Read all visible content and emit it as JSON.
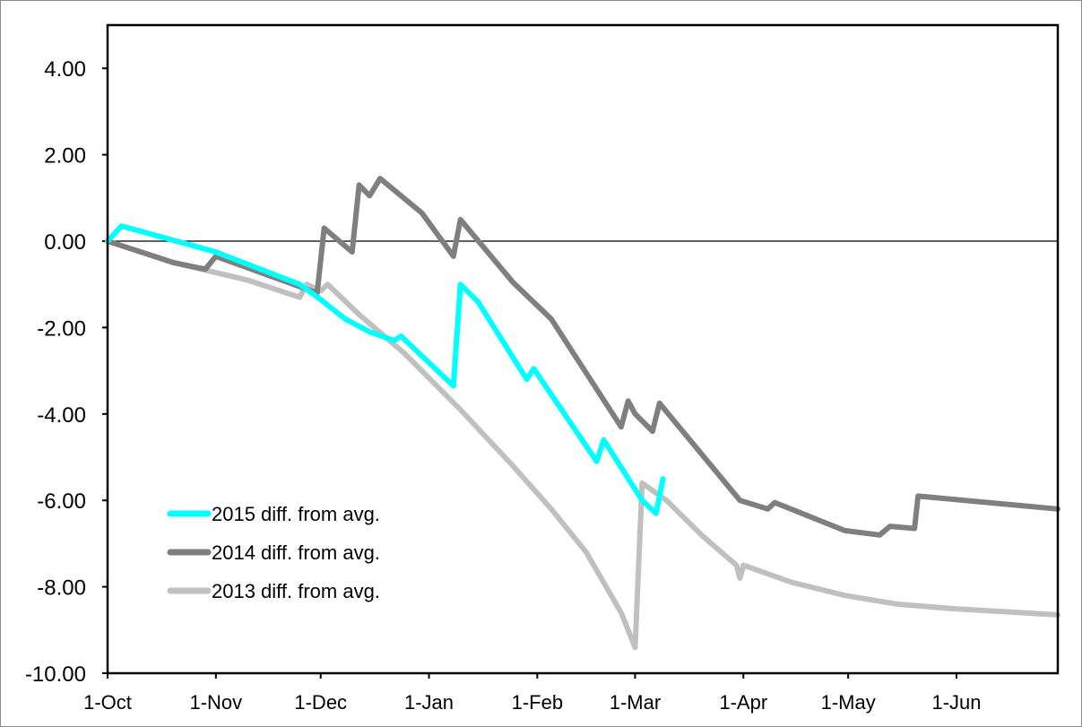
{
  "chart_data": {
    "type": "line",
    "title": "",
    "xlabel": "",
    "ylabel": "",
    "x_tick_labels": [
      "1-Oct",
      "1-Nov",
      "1-Dec",
      "1-Jan",
      "1-Feb",
      "1-Mar",
      "1-Apr",
      "1-May",
      "1-Jun"
    ],
    "xlim": [
      "1-Oct",
      "30-Jun"
    ],
    "ylim": [
      -10,
      5
    ],
    "y_tick_labels": [
      "4.00",
      "2.00",
      "0.00",
      "-2.00",
      "-4.00",
      "-6.00",
      "-8.00",
      "-10.00"
    ],
    "y_tick_values": [
      4,
      2,
      0,
      -2,
      -4,
      -6,
      -8,
      -10
    ],
    "zero_line": true,
    "grid": false,
    "legend_position": "bottom-left",
    "series": [
      {
        "name": "2013 diff. from avg.",
        "color": "#c0c0c0",
        "points": [
          [
            "1-Oct",
            0
          ],
          [
            "20-Oct",
            -0.5
          ],
          [
            "10-Nov",
            -0.9
          ],
          [
            "25-Nov",
            -1.3
          ],
          [
            "27-Nov",
            -1.0
          ],
          [
            "1-Dec",
            -1.15
          ],
          [
            "3-Dec",
            -1.0
          ],
          [
            "12-Dec",
            -1.7
          ],
          [
            "25-Dec",
            -2.6
          ],
          [
            "10-Jan",
            -3.9
          ],
          [
            "25-Jan",
            -5.2
          ],
          [
            "5-Feb",
            -6.2
          ],
          [
            "15-Feb",
            -7.2
          ],
          [
            "25-Feb",
            -8.6
          ],
          [
            "1-Mar",
            -9.4
          ],
          [
            "3-Mar",
            -5.6
          ],
          [
            "10-Mar",
            -6.0
          ],
          [
            "20-Mar",
            -6.8
          ],
          [
            "30-Mar",
            -7.5
          ],
          [
            "31-Mar",
            -7.8
          ],
          [
            "1-Apr",
            -7.5
          ],
          [
            "15-Apr",
            -7.9
          ],
          [
            "30-Apr",
            -8.2
          ],
          [
            "15-May",
            -8.4
          ],
          [
            "30-May",
            -8.5
          ],
          [
            "30-Jun",
            -8.65
          ]
        ]
      },
      {
        "name": "2014 diff. from avg.",
        "color": "#7f7f7f",
        "points": [
          [
            "1-Oct",
            0
          ],
          [
            "20-Oct",
            -0.5
          ],
          [
            "29-Oct",
            -0.65
          ],
          [
            "1-Nov",
            -0.35
          ],
          [
            "30-Nov",
            -1.2
          ],
          [
            "2-Dec",
            0.3
          ],
          [
            "10-Dec",
            -0.25
          ],
          [
            "12-Dec",
            1.3
          ],
          [
            "15-Dec",
            1.05
          ],
          [
            "18-Dec",
            1.45
          ],
          [
            "30-Dec",
            0.65
          ],
          [
            "8-Jan",
            -0.35
          ],
          [
            "10-Jan",
            0.5
          ],
          [
            "25-Jan",
            -0.95
          ],
          [
            "5-Feb",
            -1.8
          ],
          [
            "25-Feb",
            -4.3
          ],
          [
            "27-Feb",
            -3.7
          ],
          [
            "1-Mar",
            -4.0
          ],
          [
            "6-Mar",
            -4.4
          ],
          [
            "8-Mar",
            -3.75
          ],
          [
            "31-Mar",
            -6.0
          ],
          [
            "8-Apr",
            -6.2
          ],
          [
            "10-Apr",
            -6.05
          ],
          [
            "30-Apr",
            -6.7
          ],
          [
            "10-May",
            -6.8
          ],
          [
            "13-May",
            -6.6
          ],
          [
            "20-May",
            -6.65
          ],
          [
            "21-May",
            -5.9
          ],
          [
            "30-Jun",
            -6.2
          ]
        ]
      },
      {
        "name": "2015 diff. from avg.",
        "color": "#00ffff",
        "points": [
          [
            "1-Oct",
            0
          ],
          [
            "5-Oct",
            0.35
          ],
          [
            "1-Nov",
            -0.25
          ],
          [
            "25-Nov",
            -1.0
          ],
          [
            "1-Dec",
            -1.35
          ],
          [
            "8-Dec",
            -1.8
          ],
          [
            "15-Dec",
            -2.1
          ],
          [
            "22-Dec",
            -2.3
          ],
          [
            "24-Dec",
            -2.2
          ],
          [
            "8-Jan",
            -3.35
          ],
          [
            "10-Jan",
            -1.0
          ],
          [
            "15-Jan",
            -1.4
          ],
          [
            "29-Jan",
            -3.2
          ],
          [
            "31-Jan",
            -2.95
          ],
          [
            "18-Feb",
            -5.1
          ],
          [
            "20-Feb",
            -4.6
          ],
          [
            "3-Mar",
            -6.0
          ],
          [
            "7-Mar",
            -6.3
          ],
          [
            "9-Mar",
            -5.5
          ]
        ]
      }
    ]
  }
}
